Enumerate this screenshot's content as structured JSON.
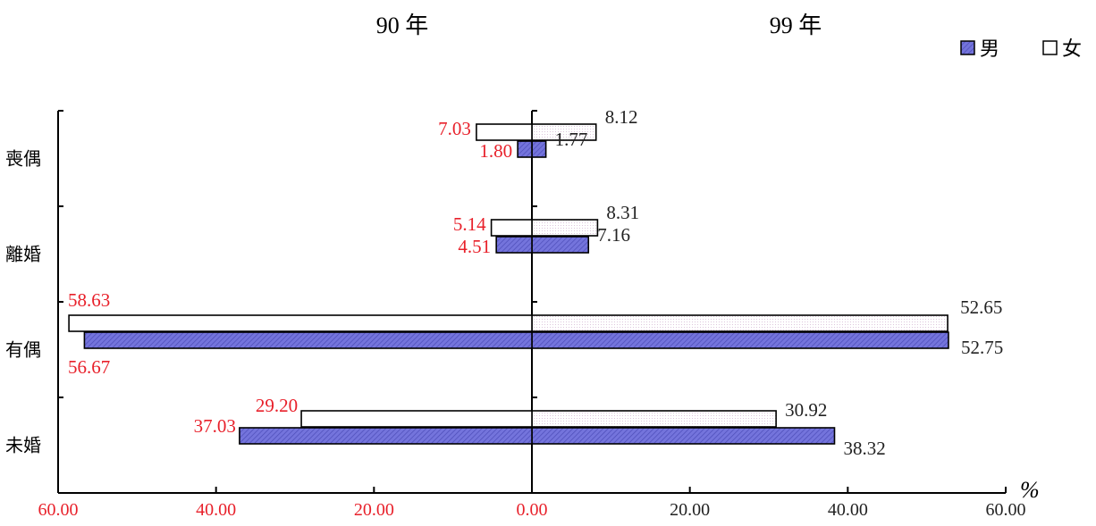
{
  "chart_data": {
    "type": "bar",
    "orientation": "horizontal",
    "layout": "back-to-back",
    "panels": [
      {
        "title": "90 年",
        "side": "left",
        "label_color": "#e8202a"
      },
      {
        "title": "99 年",
        "side": "right",
        "label_color": "#222222"
      }
    ],
    "categories": [
      "未婚",
      "有偶",
      "離婚",
      "喪偶"
    ],
    "series": [
      {
        "name": "男",
        "color": "#6b6bd6",
        "panel_90": [
          37.03,
          56.67,
          4.51,
          1.8
        ],
        "panel_99": [
          38.32,
          52.75,
          7.16,
          1.77
        ]
      },
      {
        "name": "女",
        "color": "#f6eef6",
        "panel_90": [
          29.2,
          58.63,
          5.14,
          7.03
        ],
        "panel_99": [
          30.92,
          52.65,
          8.31,
          8.12
        ]
      }
    ],
    "xlim": [
      0,
      60
    ],
    "xticks_left": [
      "60.00",
      "40.00",
      "20.00",
      "0.00"
    ],
    "xticks_right": [
      "20.00",
      "40.00",
      "60.00"
    ],
    "tick_colors": {
      "left": "#e8202a",
      "right": "#222222"
    },
    "unit": "%",
    "legend": [
      "男",
      "女"
    ],
    "legend_position": "top-right"
  }
}
